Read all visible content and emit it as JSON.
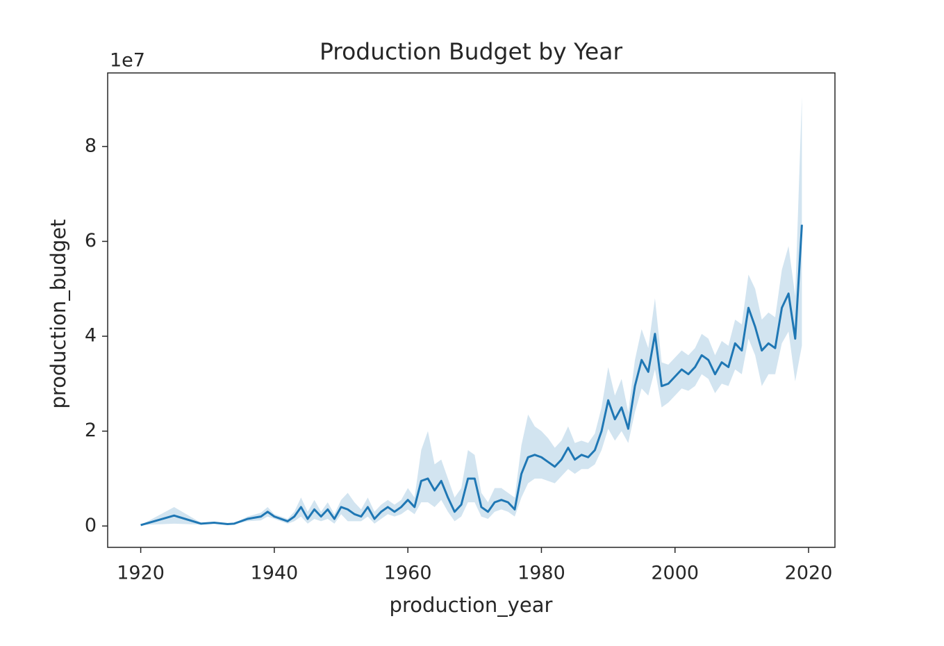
{
  "chart_data": {
    "type": "line",
    "title": "Production Budget by Year",
    "x_label": "production_year",
    "y_label": "production_budget",
    "y_offset_label": "1e7",
    "xlim": [
      1915.05,
      2023.95
    ],
    "xticks": [
      1920,
      1940,
      1960,
      1980,
      2000,
      2020
    ],
    "ylim": [
      -0.45,
      9.55
    ],
    "yticks": [
      0,
      2,
      4,
      6,
      8
    ],
    "series": [
      {
        "color": "#1f77b4",
        "x": [
          1920,
          1925,
          1929,
          1931,
          1933,
          1934,
          1936,
          1938,
          1939,
          1940,
          1942,
          1943,
          1944,
          1945,
          1946,
          1947,
          1948,
          1949,
          1950,
          1951,
          1952,
          1953,
          1954,
          1955,
          1956,
          1957,
          1958,
          1959,
          1960,
          1961,
          1962,
          1963,
          1964,
          1965,
          1966,
          1967,
          1968,
          1969,
          1970,
          1971,
          1972,
          1973,
          1974,
          1975,
          1976,
          1977,
          1978,
          1979,
          1980,
          1981,
          1982,
          1983,
          1984,
          1985,
          1986,
          1987,
          1988,
          1989,
          1990,
          1991,
          1992,
          1993,
          1994,
          1995,
          1996,
          1997,
          1998,
          1999,
          2000,
          2001,
          2002,
          2003,
          2004,
          2005,
          2006,
          2007,
          2008,
          2009,
          2010,
          2011,
          2012,
          2013,
          2014,
          2015,
          2016,
          2017,
          2018,
          2019
        ],
        "values": [
          0.02,
          0.22,
          0.05,
          0.07,
          0.04,
          0.05,
          0.15,
          0.2,
          0.3,
          0.2,
          0.1,
          0.2,
          0.4,
          0.15,
          0.35,
          0.2,
          0.35,
          0.15,
          0.4,
          0.35,
          0.25,
          0.2,
          0.4,
          0.15,
          0.3,
          0.4,
          0.3,
          0.4,
          0.55,
          0.4,
          0.95,
          1.0,
          0.75,
          0.95,
          0.6,
          0.3,
          0.45,
          1.0,
          1.0,
          0.4,
          0.3,
          0.5,
          0.55,
          0.5,
          0.35,
          1.1,
          1.45,
          1.5,
          1.45,
          1.35,
          1.25,
          1.4,
          1.65,
          1.4,
          1.5,
          1.45,
          1.6,
          2.0,
          2.65,
          2.25,
          2.5,
          2.05,
          2.95,
          3.5,
          3.25,
          4.05,
          2.95,
          3.0,
          3.15,
          3.3,
          3.2,
          3.35,
          3.6,
          3.5,
          3.2,
          3.45,
          3.35,
          3.85,
          3.7,
          4.6,
          4.2,
          3.7,
          3.85,
          3.75,
          4.6,
          4.9,
          3.95,
          6.35
        ],
        "ci_lower": [
          0.02,
          0.05,
          0.03,
          0.05,
          0.03,
          0.04,
          0.1,
          0.12,
          0.2,
          0.15,
          0.05,
          0.1,
          0.2,
          0.05,
          0.15,
          0.1,
          0.15,
          0.05,
          0.25,
          0.1,
          0.1,
          0.1,
          0.2,
          0.05,
          0.15,
          0.25,
          0.2,
          0.25,
          0.35,
          0.25,
          0.5,
          0.5,
          0.4,
          0.55,
          0.3,
          0.1,
          0.2,
          0.5,
          0.5,
          0.2,
          0.15,
          0.3,
          0.35,
          0.3,
          0.2,
          0.6,
          0.9,
          1.0,
          1.0,
          0.95,
          0.9,
          1.05,
          1.2,
          1.1,
          1.2,
          1.2,
          1.3,
          1.6,
          2.05,
          1.8,
          2.0,
          1.75,
          2.4,
          2.9,
          2.75,
          3.3,
          2.5,
          2.6,
          2.75,
          2.9,
          2.85,
          2.95,
          3.2,
          3.1,
          2.8,
          3.0,
          2.95,
          3.3,
          3.2,
          3.95,
          3.6,
          2.95,
          3.2,
          3.2,
          3.85,
          4.1,
          3.05,
          3.8
        ],
        "ci_upper": [
          0.02,
          0.4,
          0.07,
          0.09,
          0.05,
          0.06,
          0.2,
          0.28,
          0.4,
          0.25,
          0.15,
          0.3,
          0.6,
          0.3,
          0.55,
          0.3,
          0.5,
          0.25,
          0.55,
          0.7,
          0.5,
          0.35,
          0.6,
          0.3,
          0.45,
          0.55,
          0.45,
          0.55,
          0.8,
          0.6,
          1.6,
          2.0,
          1.3,
          1.4,
          1.0,
          0.6,
          0.8,
          1.6,
          1.5,
          0.7,
          0.5,
          0.8,
          0.8,
          0.7,
          0.6,
          1.7,
          2.35,
          2.1,
          2.0,
          1.85,
          1.65,
          1.8,
          2.1,
          1.75,
          1.8,
          1.75,
          1.95,
          2.5,
          3.35,
          2.75,
          3.1,
          2.4,
          3.5,
          4.15,
          3.75,
          4.8,
          3.45,
          3.4,
          3.55,
          3.7,
          3.6,
          3.75,
          4.05,
          3.95,
          3.6,
          3.9,
          3.8,
          4.35,
          4.25,
          5.3,
          5.0,
          4.35,
          4.5,
          4.4,
          5.4,
          5.9,
          4.85,
          9.05
        ]
      }
    ]
  }
}
